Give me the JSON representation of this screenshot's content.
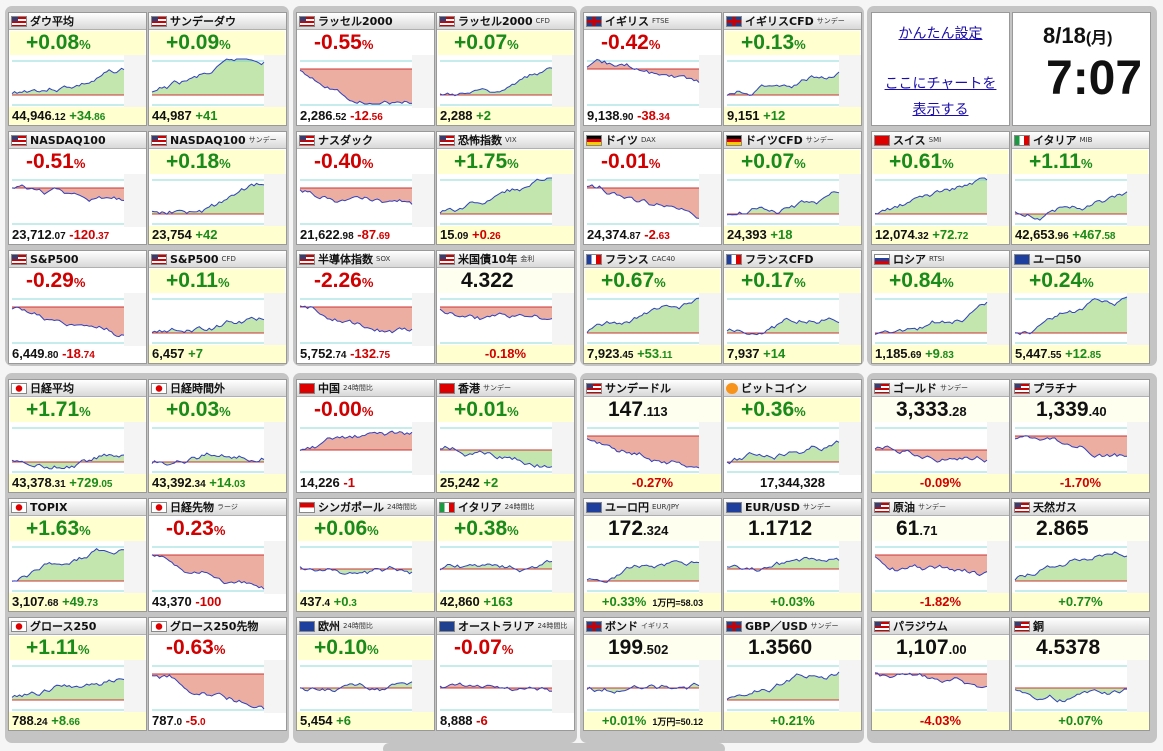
{
  "colors": {
    "up": "#1a8a1a",
    "down": "#d00000",
    "up_fill": "#b8e0a0",
    "down_fill": "#e8a090"
  },
  "settings": {
    "link1": "かんたん設定",
    "link2a": "ここにチャートを",
    "link2b": "表示する"
  },
  "clock": {
    "date": "8/18",
    "dow": "(月)",
    "time": "7:07"
  },
  "tiles": [
    {
      "name": "ダウ平均",
      "sub": "",
      "flag": "us",
      "change_main": "+0.08",
      "change_unit": "%",
      "dir": "up",
      "now_main": "44,946",
      "now_frac": ".12",
      "diff_main": "+34",
      "diff_frac": ".86",
      "trend": "up"
    },
    {
      "name": "サンデーダウ",
      "sub": "",
      "flag": "us",
      "change_main": "+0.09",
      "change_unit": "%",
      "dir": "up",
      "now_main": "44,987",
      "now_frac": "",
      "diff_main": "+41",
      "diff_frac": "",
      "trend": "up"
    },
    {
      "name": "ラッセル2000",
      "sub": "",
      "flag": "us",
      "change_main": "-0.55",
      "change_unit": "%",
      "dir": "dn",
      "now_main": "2,286",
      "now_frac": ".52",
      "diff_main": "-12",
      "diff_frac": ".56",
      "trend": "down"
    },
    {
      "name": "ラッセル2000",
      "sub": "CFD",
      "flag": "us",
      "change_main": "+0.07",
      "change_unit": "%",
      "dir": "up",
      "now_main": "2,288",
      "now_frac": "",
      "diff_main": "+2",
      "diff_frac": "",
      "trend": "up"
    },
    {
      "name": "イギリス",
      "sub": "FTSE",
      "flag": "uk",
      "change_main": "-0.42",
      "change_unit": "%",
      "dir": "dn",
      "now_main": "9,138",
      "now_frac": ".90",
      "diff_main": "-38",
      "diff_frac": ".34",
      "trend": "down"
    },
    {
      "name": "イギリスCFD",
      "sub": "サンデー",
      "flag": "uk",
      "change_main": "+0.13",
      "change_unit": "%",
      "dir": "up",
      "now_main": "9,151",
      "now_frac": "",
      "diff_main": "+12",
      "diff_frac": "",
      "trend": "up"
    },
    {
      "name": "NASDAQ100",
      "sub": "",
      "flag": "us",
      "change_main": "-0.51",
      "change_unit": "%",
      "dir": "dn",
      "now_main": "23,712",
      "now_frac": ".07",
      "diff_main": "-120",
      "diff_frac": ".37",
      "trend": "down"
    },
    {
      "name": "NASDAQ100",
      "sub": "サンデー",
      "flag": "us",
      "change_main": "+0.18",
      "change_unit": "%",
      "dir": "up",
      "now_main": "23,754",
      "now_frac": "",
      "diff_main": "+42",
      "diff_frac": "",
      "trend": "up"
    },
    {
      "name": "ナスダック",
      "sub": "",
      "flag": "us",
      "change_main": "-0.40",
      "change_unit": "%",
      "dir": "dn",
      "now_main": "21,622",
      "now_frac": ".98",
      "diff_main": "-87",
      "diff_frac": ".69",
      "trend": "down"
    },
    {
      "name": "恐怖指数",
      "sub": "VIX",
      "flag": "us",
      "change_main": "+1.75",
      "change_unit": "%",
      "dir": "up",
      "now_main": "15",
      "now_frac": ".09",
      "diff_main": "+0",
      "diff_frac": ".26",
      "trend": "up",
      "diff_dir": "dn"
    },
    {
      "name": "ドイツ",
      "sub": "DAX",
      "flag": "de",
      "change_main": "-0.01",
      "change_unit": "%",
      "dir": "dn",
      "now_main": "24,374",
      "now_frac": ".87",
      "diff_main": "-2",
      "diff_frac": ".63",
      "trend": "down"
    },
    {
      "name": "ドイツCFD",
      "sub": "サンデー",
      "flag": "de",
      "change_main": "+0.07",
      "change_unit": "%",
      "dir": "up",
      "now_main": "24,393",
      "now_frac": "",
      "diff_main": "+18",
      "diff_frac": "",
      "trend": "up"
    },
    {
      "name": "スイス",
      "sub": "SMI",
      "flag": "ch",
      "change_main": "+0.61",
      "change_unit": "%",
      "dir": "up",
      "now_main": "12,074",
      "now_frac": ".32",
      "diff_main": "+72",
      "diff_frac": ".72",
      "trend": "up"
    },
    {
      "name": "イタリア",
      "sub": "MIB",
      "flag": "it",
      "change_main": "+1.11",
      "change_unit": "%",
      "dir": "up",
      "now_main": "42,653",
      "now_frac": ".96",
      "diff_main": "+467",
      "diff_frac": ".58",
      "trend": "up"
    },
    {
      "name": "S&P500",
      "sub": "",
      "flag": "us",
      "change_main": "-0.29",
      "change_unit": "%",
      "dir": "dn",
      "now_main": "6,449",
      "now_frac": ".80",
      "diff_main": "-18",
      "diff_frac": ".74",
      "trend": "down"
    },
    {
      "name": "S&P500",
      "sub": "CFD",
      "flag": "us",
      "change_main": "+0.11",
      "change_unit": "%",
      "dir": "up",
      "now_main": "6,457",
      "now_frac": "",
      "diff_main": "+7",
      "diff_frac": "",
      "trend": "up"
    },
    {
      "name": "半導体指数",
      "sub": "SOX",
      "flag": "us",
      "change_main": "-2.26",
      "change_unit": "%",
      "dir": "dn",
      "now_main": "5,752",
      "now_frac": ".74",
      "diff_main": "-132",
      "diff_frac": ".75",
      "trend": "down"
    },
    {
      "name": "米国債10年",
      "sub": "金利",
      "flag": "us",
      "price_main": "4.322",
      "price_frac": "",
      "bottom_center": "-0.18%",
      "dir": "dn",
      "trend": "down",
      "style": "price"
    },
    {
      "name": "フランス",
      "sub": "CAC40",
      "flag": "fr",
      "change_main": "+0.67",
      "change_unit": "%",
      "dir": "up",
      "now_main": "7,923",
      "now_frac": ".45",
      "diff_main": "+53",
      "diff_frac": ".11",
      "trend": "up"
    },
    {
      "name": "フランスCFD",
      "sub": "",
      "flag": "fr",
      "change_main": "+0.17",
      "change_unit": "%",
      "dir": "up",
      "now_main": "7,937",
      "now_frac": "",
      "diff_main": "+14",
      "diff_frac": "",
      "trend": "up"
    },
    {
      "name": "ロシア",
      "sub": "RTSI",
      "flag": "ru",
      "change_main": "+0.84",
      "change_unit": "%",
      "dir": "up",
      "now_main": "1,185",
      "now_frac": ".69",
      "diff_main": "+9",
      "diff_frac": ".83",
      "trend": "up"
    },
    {
      "name": "ユーロ50",
      "sub": "",
      "flag": "eu",
      "change_main": "+0.24",
      "change_unit": "%",
      "dir": "up",
      "now_main": "5,447",
      "now_frac": ".55",
      "diff_main": "+12",
      "diff_frac": ".85",
      "trend": "up"
    },
    {
      "name": "日経平均",
      "sub": "",
      "flag": "jp",
      "change_main": "+1.71",
      "change_unit": "%",
      "dir": "up",
      "now_main": "43,378",
      "now_frac": ".31",
      "diff_main": "+729",
      "diff_frac": ".05",
      "trend": "up"
    },
    {
      "name": "日経時間外",
      "sub": "",
      "flag": "jp",
      "change_main": "+0.03",
      "change_unit": "%",
      "dir": "up",
      "now_main": "43,392",
      "now_frac": ".34",
      "diff_main": "+14",
      "diff_frac": ".03",
      "trend": "up"
    },
    {
      "name": "中国",
      "sub": "24時間比",
      "flag": "cn",
      "change_main": "-0.00",
      "change_unit": "%",
      "dir": "dn",
      "now_main": "14,226",
      "now_frac": "",
      "diff_main": "-1",
      "diff_frac": "",
      "trend": "flat"
    },
    {
      "name": "香港",
      "sub": "サンデー",
      "flag": "hk",
      "change_main": "+0.01",
      "change_unit": "%",
      "dir": "up",
      "now_main": "25,242",
      "now_frac": "",
      "diff_main": "+2",
      "diff_frac": "",
      "trend": "flat"
    },
    {
      "name": "サンデードル",
      "sub": "",
      "flag": "us",
      "price_main": "147",
      "price_frac": ".113",
      "bottom_center": "-0.27%",
      "dir": "dn",
      "trend": "down",
      "style": "price"
    },
    {
      "name": "ビットコイン",
      "sub": "",
      "flag": "btc",
      "change_main": "+0.36",
      "change_unit": "%",
      "dir": "up",
      "now_main": "17,344,328",
      "now_frac": "",
      "diff_main": "",
      "diff_frac": "",
      "trend": "up",
      "style": "center"
    },
    {
      "name": "ゴールド",
      "sub": "サンデー",
      "flag": "us",
      "price_main": "3,333",
      "price_frac": ".28",
      "bottom_center": "-0.09%",
      "dir": "dn",
      "trend": "flat",
      "style": "price"
    },
    {
      "name": "プラチナ",
      "sub": "",
      "flag": "us",
      "price_main": "1,339",
      "price_frac": ".40",
      "bottom_center": "-1.70%",
      "dir": "dn",
      "trend": "down",
      "style": "price"
    },
    {
      "name": "TOPIX",
      "sub": "",
      "flag": "jp",
      "change_main": "+1.63",
      "change_unit": "%",
      "dir": "up",
      "now_main": "3,107",
      "now_frac": ".68",
      "diff_main": "+49",
      "diff_frac": ".73",
      "trend": "up"
    },
    {
      "name": "日経先物",
      "sub": "ラージ",
      "flag": "jp",
      "change_main": "-0.23",
      "change_unit": "%",
      "dir": "dn",
      "now_main": "43,370",
      "now_frac": "",
      "diff_main": "-100",
      "diff_frac": "",
      "trend": "down"
    },
    {
      "name": "シンガポール",
      "sub": "24時間比",
      "flag": "sg",
      "change_main": "+0.06",
      "change_unit": "%",
      "dir": "up",
      "now_main": "437",
      "now_frac": ".4",
      "diff_main": "+0",
      "diff_frac": ".3",
      "trend": "flat"
    },
    {
      "name": "イタリア",
      "sub": "24時間比",
      "flag": "it",
      "change_main": "+0.38",
      "change_unit": "%",
      "dir": "up",
      "now_main": "42,860",
      "now_frac": "",
      "diff_main": "+163",
      "diff_frac": "",
      "trend": "flat"
    },
    {
      "name": "ユーロ円",
      "sub": "EUR/JPY",
      "flag": "eu",
      "price_main": "172",
      "price_frac": ".324",
      "bottom_center": "+0.33%",
      "bottom_note": "1万円=58.03",
      "dir": "up",
      "trend": "up",
      "style": "price"
    },
    {
      "name": "EUR/USD",
      "sub": "サンデー",
      "flag": "eu",
      "price_main": "1.1712",
      "price_frac": "",
      "bottom_center": "+0.03%",
      "dir": "up",
      "trend": "flat",
      "style": "price"
    },
    {
      "name": "原油",
      "sub": "サンデー",
      "flag": "us",
      "price_main": "61",
      "price_frac": ".71",
      "bottom_center": "-1.82%",
      "dir": "dn",
      "trend": "down",
      "style": "price"
    },
    {
      "name": "天然ガス",
      "sub": "",
      "flag": "us",
      "price_main": "2.865",
      "price_frac": "",
      "bottom_center": "+0.77%",
      "dir": "up",
      "trend": "up",
      "style": "price"
    },
    {
      "name": "グロース250",
      "sub": "",
      "flag": "jp",
      "change_main": "+1.11",
      "change_unit": "%",
      "dir": "up",
      "now_main": "788",
      "now_frac": ".24",
      "diff_main": "+8",
      "diff_frac": ".66",
      "trend": "up"
    },
    {
      "name": "グロース250先物",
      "sub": "",
      "flag": "jp",
      "change_main": "-0.63",
      "change_unit": "%",
      "dir": "dn",
      "now_main": "787",
      "now_frac": ".0",
      "diff_main": "-5",
      "diff_frac": ".0",
      "trend": "down"
    },
    {
      "name": "欧州",
      "sub": "24時間比",
      "flag": "eu",
      "change_main": "+0.10",
      "change_unit": "%",
      "dir": "up",
      "now_main": "5,454",
      "now_frac": "",
      "diff_main": "+6",
      "diff_frac": "",
      "trend": "flat"
    },
    {
      "name": "オーストラリア",
      "sub": "24時間比",
      "flag": "au",
      "change_main": "-0.07",
      "change_unit": "%",
      "dir": "dn",
      "now_main": "8,888",
      "now_frac": "",
      "diff_main": "-6",
      "diff_frac": "",
      "trend": "flat"
    },
    {
      "name": "ボンド",
      "sub": "イギリス",
      "flag": "uk",
      "price_main": "199",
      "price_frac": ".502",
      "bottom_center": "+0.01%",
      "bottom_note": "1万円=50.12",
      "dir": "up",
      "trend": "flat",
      "style": "price"
    },
    {
      "name": "GBP／USD",
      "sub": "サンデー",
      "flag": "uk",
      "price_main": "1.3560",
      "price_frac": "",
      "bottom_center": "+0.21%",
      "dir": "up",
      "trend": "up",
      "style": "price"
    },
    {
      "name": "パラジウム",
      "sub": "",
      "flag": "us",
      "price_main": "1,107",
      "price_frac": ".00",
      "bottom_center": "-4.03%",
      "dir": "dn",
      "trend": "down",
      "style": "price"
    },
    {
      "name": "銅",
      "sub": "",
      "flag": "us",
      "price_main": "4.5378",
      "price_frac": "",
      "bottom_center": "+0.07%",
      "dir": "up",
      "trend": "flat",
      "style": "price"
    }
  ]
}
